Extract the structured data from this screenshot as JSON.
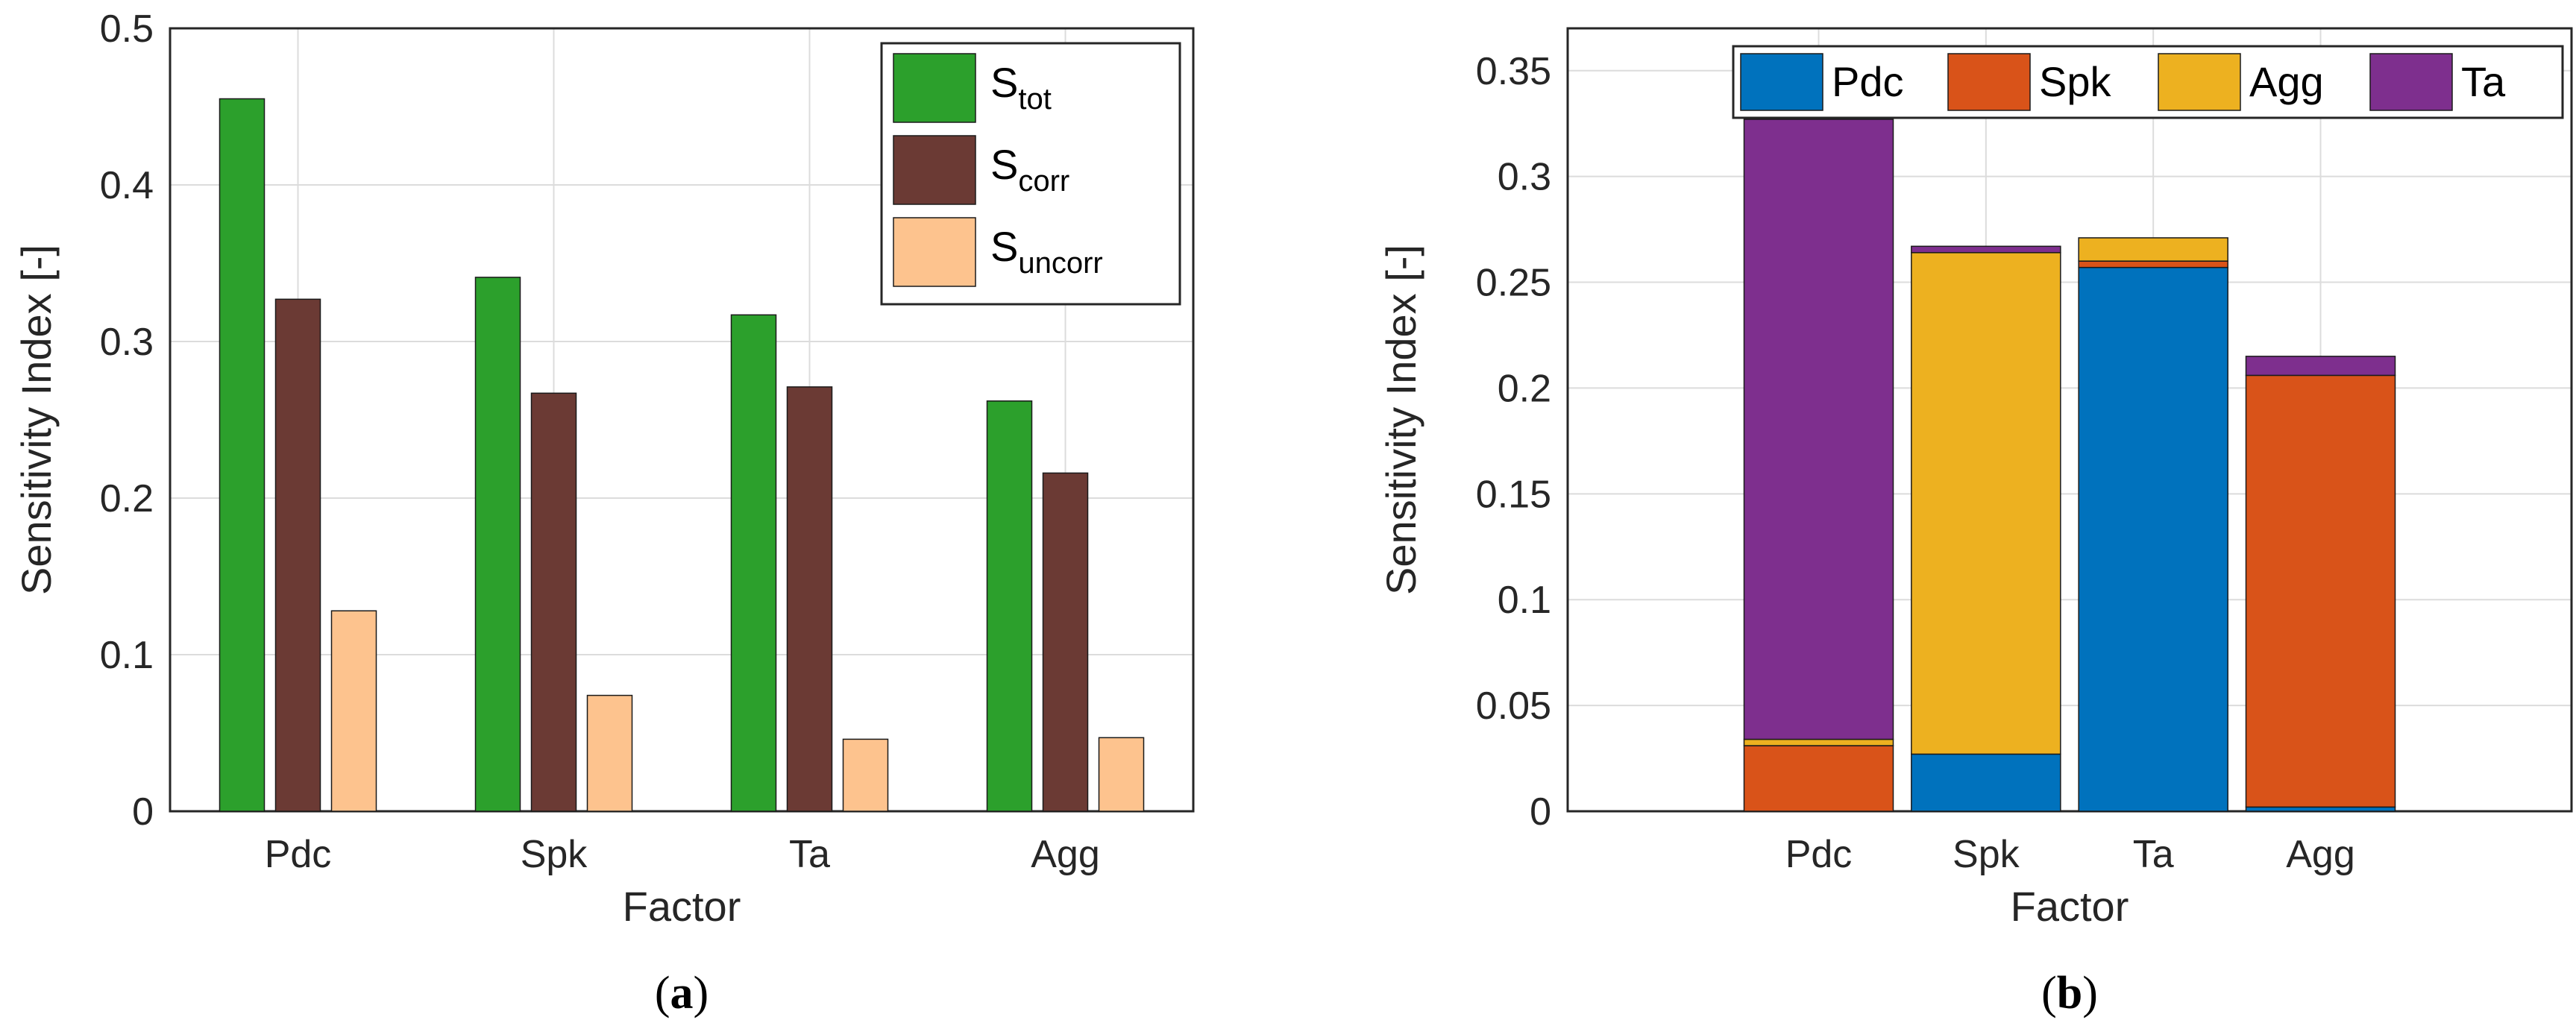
{
  "chart_data": [
    {
      "type": "bar",
      "panel": "(a)",
      "caption": {
        "open": "(",
        "letter": "a",
        "close": ")"
      },
      "xlabel": "Factor",
      "ylabel": "Sensitivity Index [-]",
      "categories": [
        "Pdc",
        "Spk",
        "Ta",
        "Agg"
      ],
      "ylim": [
        0,
        0.5
      ],
      "yticks": [
        "0",
        "0.1",
        "0.2",
        "0.3",
        "0.4",
        "0.5"
      ],
      "grid": true,
      "legend_position": "top-right",
      "series": [
        {
          "name": "S",
          "sub": "tot",
          "color": "#2ca02c",
          "values": [
            0.455,
            0.341,
            0.317,
            0.262
          ]
        },
        {
          "name": "S",
          "sub": "corr",
          "color": "#6b3a34",
          "values": [
            0.327,
            0.267,
            0.271,
            0.216
          ]
        },
        {
          "name": "S",
          "sub": "uncorr",
          "color": "#fdc38e",
          "values": [
            0.128,
            0.074,
            0.046,
            0.047
          ]
        }
      ]
    },
    {
      "type": "bar",
      "stacked": true,
      "panel": "(b)",
      "caption": {
        "open": "(",
        "letter": "b",
        "close": ")"
      },
      "xlabel": "Factor",
      "ylabel": "Sensitivity Index [-]",
      "categories": [
        "Pdc",
        "Spk",
        "Ta",
        "Agg"
      ],
      "ylim": [
        0,
        0.37
      ],
      "yticks": [
        "0",
        "0.05",
        "0.1",
        "0.15",
        "0.2",
        "0.25",
        "0.3",
        "0.35"
      ],
      "grid": true,
      "legend_position": "top",
      "series": [
        {
          "name": "Pdc",
          "color": "#0072bd",
          "values": [
            0.0,
            0.027,
            0.257,
            0.002
          ]
        },
        {
          "name": "Spk",
          "color": "#d95319",
          "values": [
            0.031,
            0.0,
            0.003,
            0.204
          ]
        },
        {
          "name": "Agg",
          "color": "#edb120",
          "values": [
            0.003,
            0.237,
            0.011,
            0.0
          ]
        },
        {
          "name": "Ta",
          "color": "#7e2f8e",
          "values": [
            0.293,
            0.003,
            0.0,
            0.009
          ]
        }
      ]
    }
  ]
}
